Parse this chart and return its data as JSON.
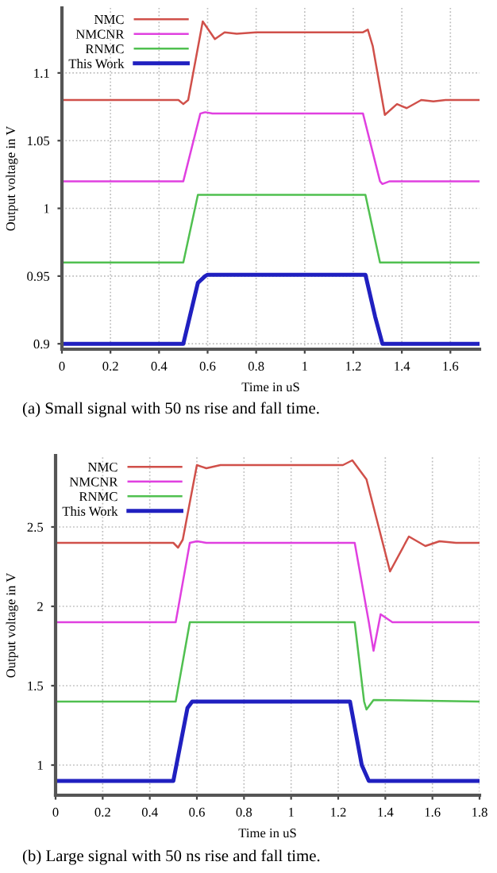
{
  "chart_data": [
    {
      "type": "line",
      "xlabel": "Time in uS",
      "ylabel": "Output voltage in V",
      "xlim": [
        0,
        1.72
      ],
      "ylim": [
        0.896,
        1.148
      ],
      "xticks": [
        0,
        0.2,
        0.4,
        0.6,
        0.8,
        1,
        1.2,
        1.4,
        1.6
      ],
      "yticks": [
        0.9,
        0.95,
        1,
        1.05,
        1.1
      ],
      "grid": true,
      "legend": "top left",
      "line_style": "solid",
      "marker": "none",
      "annotations": [
        "(a) Small signal with 50 ns rise and fall time."
      ],
      "series": [
        {
          "name": "NMC",
          "color": "#d0504a",
          "x": [
            0,
            0.48,
            0.5,
            0.52,
            0.58,
            0.63,
            0.67,
            0.72,
            0.8,
            1.24,
            1.26,
            1.28,
            1.33,
            1.38,
            1.42,
            1.48,
            1.53,
            1.58,
            1.72
          ],
          "values": [
            1.08,
            1.08,
            1.077,
            1.08,
            1.138,
            1.125,
            1.13,
            1.129,
            1.13,
            1.13,
            1.132,
            1.12,
            1.069,
            1.077,
            1.074,
            1.08,
            1.079,
            1.08,
            1.08
          ]
        },
        {
          "name": "NMCNR",
          "color": "#e040e0",
          "x": [
            0,
            0.5,
            0.57,
            0.59,
            0.62,
            1.24,
            1.31,
            1.32,
            1.35,
            1.72
          ],
          "values": [
            1.02,
            1.02,
            1.07,
            1.071,
            1.07,
            1.07,
            1.02,
            1.018,
            1.02,
            1.02
          ]
        },
        {
          "name": "RNMC",
          "color": "#50c050",
          "x": [
            0,
            0.5,
            0.56,
            1.25,
            1.31,
            1.72
          ],
          "values": [
            0.96,
            0.96,
            1.01,
            1.01,
            0.96,
            0.96
          ]
        },
        {
          "name": "This Work",
          "color": "#2020c0",
          "x": [
            0,
            0.5,
            0.56,
            0.59,
            0.6,
            1.25,
            1.29,
            1.32,
            1.72
          ],
          "values": [
            0.9,
            0.9,
            0.945,
            0.95,
            0.951,
            0.951,
            0.92,
            0.9,
            0.9
          ]
        }
      ]
    },
    {
      "type": "line",
      "xlabel": "Time in uS",
      "ylabel": "Output voltage in V",
      "xlim": [
        0,
        1.8
      ],
      "ylim": [
        0.81,
        2.95
      ],
      "xticks": [
        0,
        0.2,
        0.4,
        0.6,
        0.8,
        1,
        1.2,
        1.4,
        1.6,
        1.8
      ],
      "yticks": [
        1,
        1.5,
        2,
        2.5
      ],
      "grid": true,
      "legend": "top left",
      "line_style": "solid",
      "marker": "none",
      "annotations": [
        "(b) Large signal with 50 ns rise and fall time."
      ],
      "series": [
        {
          "name": "NMC",
          "color": "#d0504a",
          "x": [
            0,
            0.5,
            0.52,
            0.54,
            0.6,
            0.64,
            0.7,
            1.22,
            1.26,
            1.32,
            1.42,
            1.5,
            1.57,
            1.63,
            1.7,
            1.8
          ],
          "values": [
            2.4,
            2.4,
            2.37,
            2.42,
            2.89,
            2.87,
            2.89,
            2.89,
            2.92,
            2.8,
            2.22,
            2.44,
            2.38,
            2.41,
            2.4,
            2.4
          ]
        },
        {
          "name": "NMCNR",
          "color": "#e040e0",
          "x": [
            0,
            0.51,
            0.57,
            0.6,
            0.64,
            1.27,
            1.33,
            1.35,
            1.38,
            1.43,
            1.8
          ],
          "values": [
            1.9,
            1.9,
            2.4,
            2.41,
            2.4,
            2.4,
            1.9,
            1.72,
            1.95,
            1.9,
            1.9
          ]
        },
        {
          "name": "RNMC",
          "color": "#50c050",
          "x": [
            0,
            0.51,
            0.57,
            1.27,
            1.31,
            1.32,
            1.35,
            1.8
          ],
          "values": [
            1.4,
            1.4,
            1.9,
            1.9,
            1.4,
            1.35,
            1.41,
            1.4
          ]
        },
        {
          "name": "This Work",
          "color": "#2020c0",
          "x": [
            0,
            0.5,
            0.56,
            0.58,
            1.25,
            1.3,
            1.33,
            1.8
          ],
          "values": [
            0.9,
            0.9,
            1.36,
            1.4,
            1.4,
            1.0,
            0.9,
            0.9
          ]
        }
      ]
    }
  ]
}
